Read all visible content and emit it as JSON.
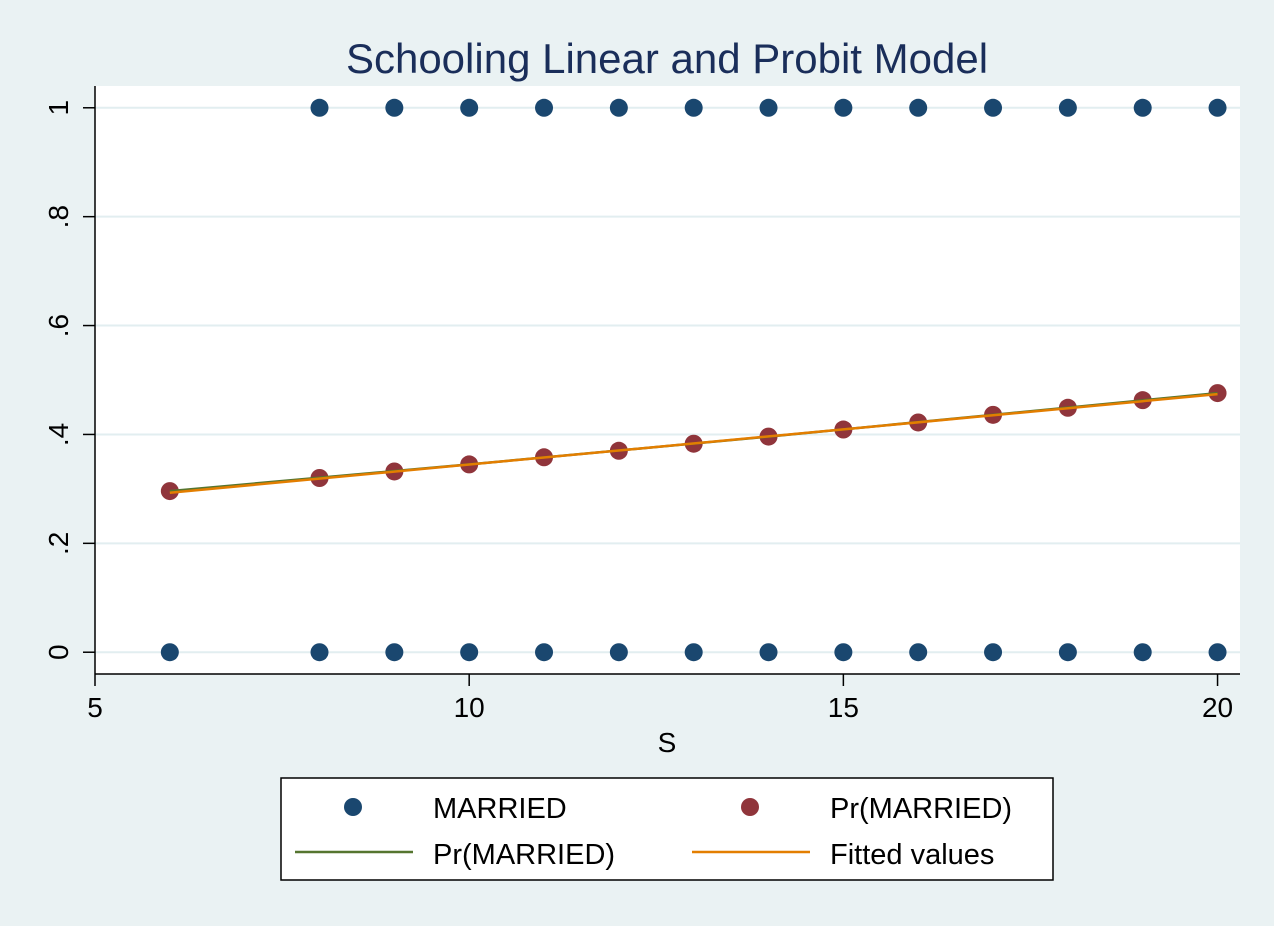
{
  "colors": {
    "background": "#eaf2f3",
    "plot_background": "#ffffff",
    "grid": "#e2eef0",
    "married": "#1a476f",
    "pr_married_points": "#90353b",
    "probit_line": "#55752f",
    "fitted_line": "#e37e00",
    "title": "#1a2e5a"
  },
  "chart_data": {
    "type": "scatter",
    "title": "Schooling Linear and Probit Model",
    "xlabel": "S",
    "ylabel": "",
    "xlim": [
      5,
      20.3
    ],
    "ylim": [
      -0.04,
      1.04
    ],
    "x_ticks": [
      5,
      10,
      15,
      20
    ],
    "x_tick_labels": [
      "5",
      "10",
      "15",
      "20"
    ],
    "y_ticks": [
      0,
      0.2,
      0.4,
      0.6,
      0.8,
      1
    ],
    "y_tick_labels": [
      "0",
      ".2",
      ".4",
      ".6",
      ".8",
      "1"
    ],
    "grid": true,
    "legend_position": "bottom",
    "series": [
      {
        "name": "MARRIED",
        "kind": "points",
        "color_key": "married",
        "points": [
          [
            6,
            0
          ],
          [
            8,
            0
          ],
          [
            9,
            0
          ],
          [
            10,
            0
          ],
          [
            11,
            0
          ],
          [
            12,
            0
          ],
          [
            13,
            0
          ],
          [
            14,
            0
          ],
          [
            15,
            0
          ],
          [
            16,
            0
          ],
          [
            17,
            0
          ],
          [
            18,
            0
          ],
          [
            19,
            0
          ],
          [
            20,
            0
          ],
          [
            8,
            1
          ],
          [
            9,
            1
          ],
          [
            10,
            1
          ],
          [
            11,
            1
          ],
          [
            12,
            1
          ],
          [
            13,
            1
          ],
          [
            14,
            1
          ],
          [
            15,
            1
          ],
          [
            16,
            1
          ],
          [
            17,
            1
          ],
          [
            18,
            1
          ],
          [
            19,
            1
          ],
          [
            20,
            1
          ]
        ]
      },
      {
        "name": "Pr(MARRIED)",
        "kind": "points",
        "color_key": "pr_married_points",
        "points": [
          [
            6,
            0.296
          ],
          [
            8,
            0.32
          ],
          [
            9,
            0.332
          ],
          [
            10,
            0.345
          ],
          [
            11,
            0.358
          ],
          [
            12,
            0.37
          ],
          [
            13,
            0.383
          ],
          [
            14,
            0.396
          ],
          [
            15,
            0.409
          ],
          [
            16,
            0.422
          ],
          [
            17,
            0.436
          ],
          [
            18,
            0.449
          ],
          [
            19,
            0.463
          ],
          [
            20,
            0.476
          ]
        ]
      },
      {
        "name": "Pr(MARRIED)",
        "kind": "line",
        "color_key": "probit_line",
        "points": [
          [
            6,
            0.296
          ],
          [
            10,
            0.345
          ],
          [
            14,
            0.396
          ],
          [
            17,
            0.436
          ],
          [
            20,
            0.476
          ]
        ]
      },
      {
        "name": "Fitted values",
        "kind": "line",
        "color_key": "fitted_line",
        "points": [
          [
            6,
            0.293
          ],
          [
            20,
            0.474
          ]
        ]
      }
    ]
  }
}
